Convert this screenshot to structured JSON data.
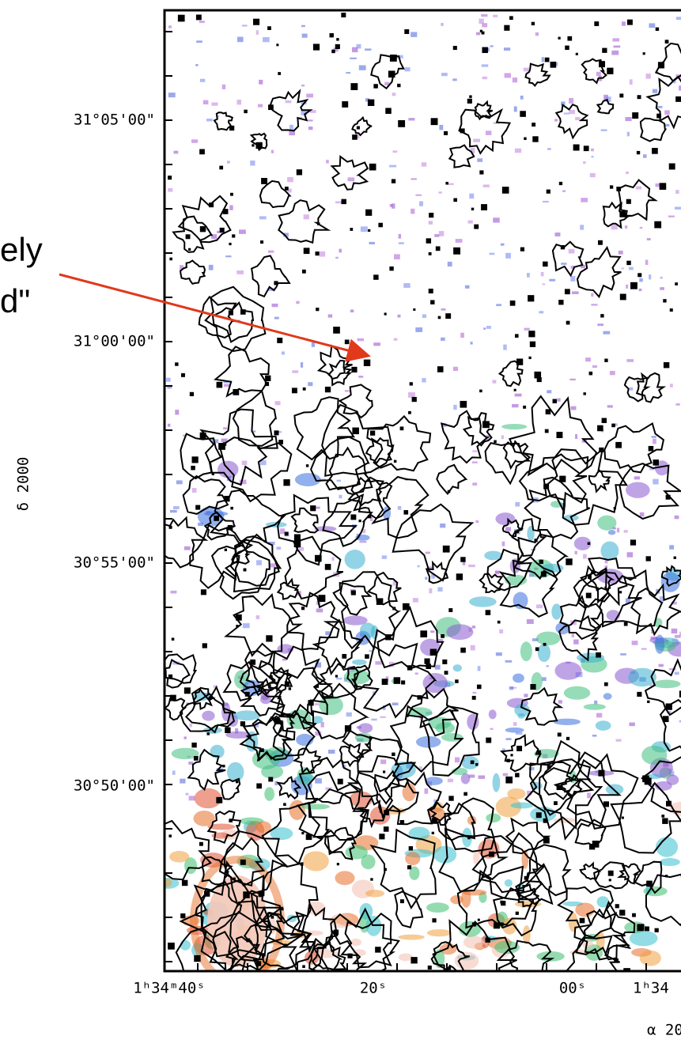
{
  "annotation": {
    "lines": [
      "ely",
      "d\""
    ]
  },
  "y_axis": {
    "title": "δ 2000",
    "ticks": [
      "31°05'00\"",
      "31°00'00\"",
      "30°55'00\"",
      "30°50'00\""
    ]
  },
  "x_axis": {
    "title": "α 20",
    "ticks": [
      "1ʰ34ᵐ40ˢ",
      "20ˢ",
      "00ˢ",
      "1ʰ34"
    ]
  }
}
